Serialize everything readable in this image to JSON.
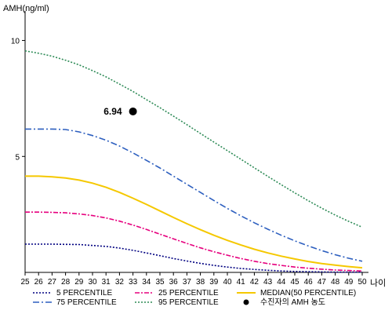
{
  "chart_data": {
    "type": "line",
    "ylabel": "AMH(ng/ml)",
    "xlabel": "나이",
    "xlim": [
      25,
      50
    ],
    "ylim": [
      0,
      11
    ],
    "x_ticks": [
      25,
      26,
      27,
      28,
      29,
      30,
      31,
      32,
      33,
      34,
      35,
      36,
      37,
      38,
      39,
      40,
      41,
      42,
      43,
      44,
      45,
      46,
      47,
      48,
      49,
      50
    ],
    "y_ticks": [
      5,
      10
    ],
    "grid": false,
    "series": [
      {
        "name": "5 PERCENTILE",
        "color": "#000080",
        "dash": "2,2",
        "x": [
          25,
          26,
          27,
          28,
          29,
          30,
          31,
          32,
          33,
          34,
          35,
          36,
          37,
          38,
          39,
          40,
          41,
          42,
          43,
          44,
          45,
          46,
          47,
          48,
          49,
          50
        ],
        "values": [
          1.22,
          1.22,
          1.22,
          1.21,
          1.2,
          1.16,
          1.12,
          1.05,
          0.95,
          0.84,
          0.72,
          0.6,
          0.49,
          0.39,
          0.3,
          0.23,
          0.17,
          0.13,
          0.09,
          0.06,
          0.04,
          0.03,
          0.02,
          0.01,
          0.01,
          0.01
        ]
      },
      {
        "name": "25 PERCENTILE",
        "color": "#e6007e",
        "dash": "6,2,2,2",
        "x": [
          25,
          26,
          27,
          28,
          29,
          30,
          31,
          32,
          33,
          34,
          35,
          36,
          37,
          38,
          39,
          40,
          41,
          42,
          43,
          44,
          45,
          46,
          47,
          48,
          49,
          50
        ],
        "values": [
          2.6,
          2.6,
          2.59,
          2.57,
          2.52,
          2.45,
          2.35,
          2.21,
          2.04,
          1.85,
          1.65,
          1.45,
          1.25,
          1.06,
          0.89,
          0.74,
          0.6,
          0.48,
          0.38,
          0.3,
          0.23,
          0.18,
          0.14,
          0.1,
          0.08,
          0.06
        ]
      },
      {
        "name": "MEDIAN(50 PERCENTILE)",
        "color": "#f5c800",
        "dash": "",
        "x": [
          25,
          26,
          27,
          28,
          29,
          30,
          31,
          32,
          33,
          34,
          35,
          36,
          37,
          38,
          39,
          40,
          41,
          42,
          43,
          44,
          45,
          46,
          47,
          48,
          49,
          50
        ],
        "values": [
          4.15,
          4.15,
          4.12,
          4.07,
          3.98,
          3.85,
          3.67,
          3.45,
          3.2,
          2.93,
          2.65,
          2.37,
          2.1,
          1.84,
          1.6,
          1.38,
          1.18,
          1.0,
          0.84,
          0.7,
          0.58,
          0.47,
          0.38,
          0.31,
          0.25,
          0.2
        ]
      },
      {
        "name": "75 PERCENTILE",
        "color": "#2d5fbf",
        "dash": "8,3,2,3",
        "x": [
          25,
          26,
          27,
          28,
          29,
          30,
          31,
          32,
          33,
          34,
          35,
          36,
          37,
          38,
          39,
          40,
          41,
          42,
          43,
          44,
          45,
          46,
          47,
          48,
          49,
          50
        ],
        "values": [
          6.18,
          6.18,
          6.18,
          6.16,
          6.06,
          5.9,
          5.7,
          5.45,
          5.15,
          4.83,
          4.5,
          4.15,
          3.8,
          3.45,
          3.1,
          2.76,
          2.44,
          2.14,
          1.86,
          1.6,
          1.36,
          1.14,
          0.94,
          0.76,
          0.61,
          0.48
        ]
      },
      {
        "name": "95 PERCENTILE",
        "color": "#2e8b57",
        "dash": "2,2",
        "x": [
          25,
          26,
          27,
          28,
          29,
          30,
          31,
          32,
          33,
          34,
          35,
          36,
          37,
          38,
          39,
          40,
          41,
          42,
          43,
          44,
          45,
          46,
          47,
          48,
          49,
          50
        ],
        "values": [
          9.55,
          9.45,
          9.32,
          9.15,
          8.95,
          8.7,
          8.43,
          8.12,
          7.8,
          7.45,
          7.1,
          6.74,
          6.37,
          5.99,
          5.62,
          5.25,
          4.88,
          4.51,
          4.14,
          3.78,
          3.43,
          3.09,
          2.77,
          2.47,
          2.2,
          1.95
        ]
      }
    ],
    "annotations": [
      {
        "name": "수진자의 AMH 농도",
        "x": 33,
        "y": 6.94,
        "label": "6.94",
        "color": "#000000"
      }
    ],
    "legend": {
      "position": "bottom",
      "items": [
        {
          "label": "5 PERCENTILE",
          "series": 0
        },
        {
          "label": "25 PERCENTILE",
          "series": 1
        },
        {
          "label": "MEDIAN(50 PERCENTILE)",
          "series": 2
        },
        {
          "label": "75 PERCENTILE",
          "series": 3
        },
        {
          "label": "95 PERCENTILE",
          "series": 4
        },
        {
          "label": "수진자의 AMH 농도",
          "marker": "dot"
        }
      ]
    }
  }
}
